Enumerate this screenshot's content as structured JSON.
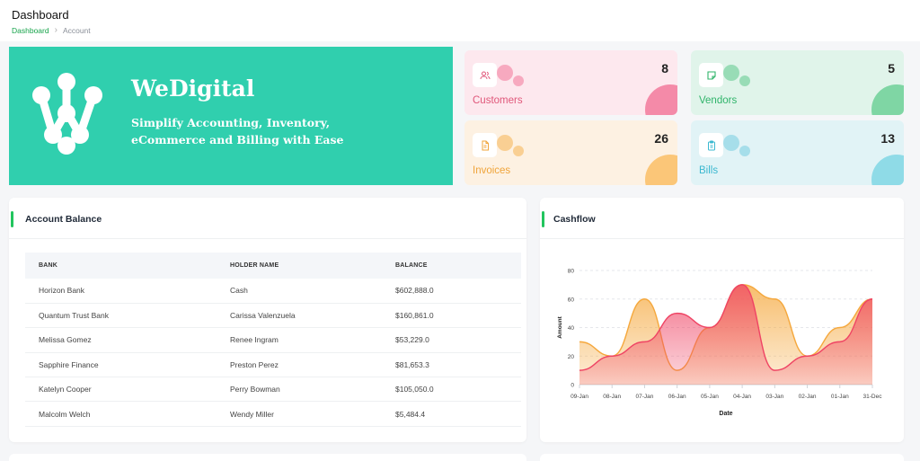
{
  "header": {
    "title": "Dashboard",
    "breadcrumb": {
      "home": "Dashboard",
      "current": "Account"
    }
  },
  "banner": {
    "brand": "WeDigital",
    "tagline": "Simplify Accounting, Inventory, eCommerce and Billing with Ease"
  },
  "stats": [
    {
      "label": "Customers",
      "count": "8",
      "icon": "users-icon",
      "color": "#e0577a"
    },
    {
      "label": "Vendors",
      "count": "5",
      "icon": "note-icon",
      "color": "#2fb46a"
    },
    {
      "label": "Invoices",
      "count": "26",
      "icon": "file-icon",
      "color": "#f0a43a"
    },
    {
      "label": "Bills",
      "count": "13",
      "icon": "clipboard-icon",
      "color": "#3bb8d0"
    }
  ],
  "account_balance": {
    "title": "Account Balance",
    "columns": [
      "BANK",
      "HOLDER NAME",
      "BALANCE"
    ],
    "rows": [
      [
        "Horizon Bank",
        "Cash",
        "$602,888.0"
      ],
      [
        "Quantum Trust Bank",
        "Carissa Valenzuela",
        "$160,861.0"
      ],
      [
        "Melissa Gomez",
        "Renee Ingram",
        "$53,229.0"
      ],
      [
        "Sapphire Finance",
        "Preston Perez",
        "$81,653.3"
      ],
      [
        "Katelyn Cooper",
        "Perry Bowman",
        "$105,050.0"
      ],
      [
        "Malcolm Welch",
        "Wendy Miller",
        "$5,484.4"
      ]
    ]
  },
  "cashflow": {
    "title": "Cashflow"
  },
  "chart_data": {
    "type": "area",
    "title": "Cashflow",
    "xlabel": "Date",
    "ylabel": "Amount",
    "ylim": [
      0,
      80
    ],
    "yticks": [
      0,
      20,
      40,
      60,
      80
    ],
    "categories": [
      "09-Jan",
      "08-Jan",
      "07-Jan",
      "06-Jan",
      "05-Jan",
      "04-Jan",
      "03-Jan",
      "02-Jan",
      "01-Jan",
      "31-Dec"
    ],
    "grid": true,
    "series": [
      {
        "values": [
          30,
          20,
          60,
          10,
          40,
          70,
          60,
          20,
          40,
          60
        ],
        "color": "#f5a83d"
      },
      {
        "values": [
          10,
          20,
          30,
          50,
          40,
          70,
          10,
          20,
          30,
          60
        ],
        "color": "#ef4464"
      }
    ]
  }
}
